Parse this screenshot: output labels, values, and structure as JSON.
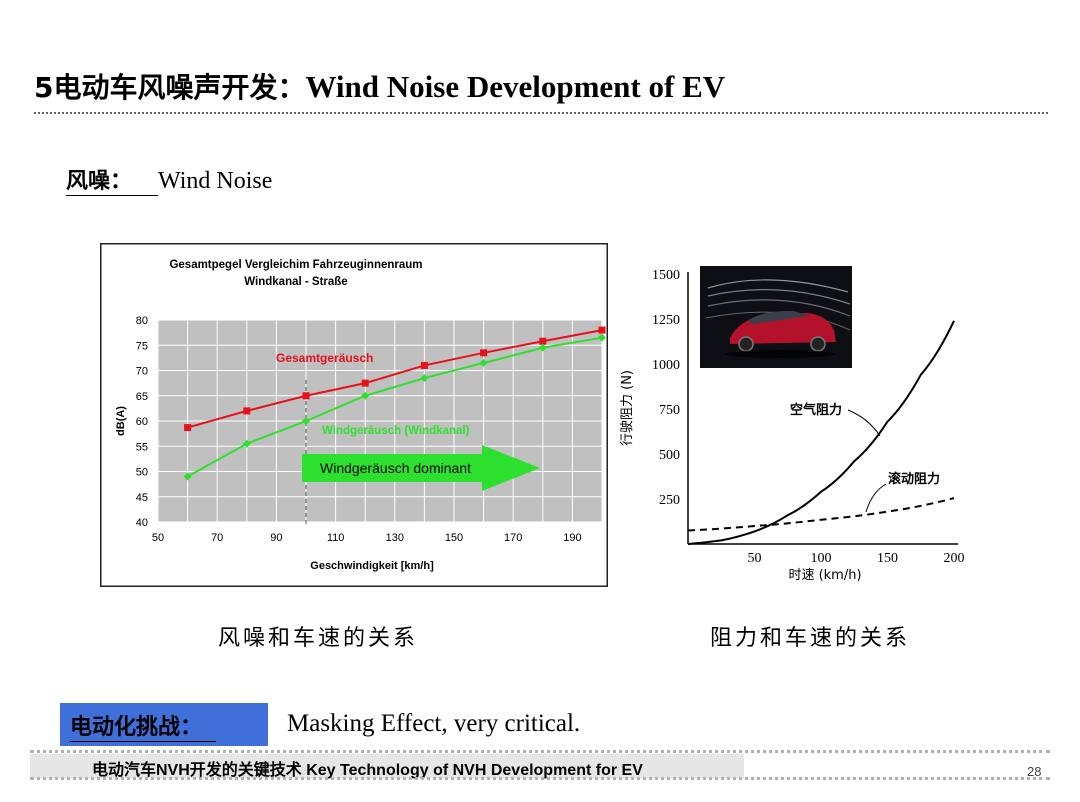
{
  "header": {
    "title_zh": "5电动车风噪声开发：",
    "title_en": "Wind Noise Development of  EV"
  },
  "section": {
    "label": "风噪：",
    "value": "Wind Noise"
  },
  "captions": {
    "left": "风噪和车速的关系",
    "right": "阻力和车速的关系"
  },
  "challenge": {
    "label": "电动化挑战：",
    "text": "Masking Effect,  very critical."
  },
  "footer": {
    "text": "电动汽车NVH开发的关键技术 Key Technology of NVH Development for EV",
    "page_number": "28"
  },
  "colors": {
    "red_series": "#e8101a",
    "green_series": "#2ee02e",
    "plot_bg": "#c0c0c0",
    "challenge_box": "#3f6fd9"
  },
  "chart_data": [
    {
      "type": "line",
      "title": "Gesamtpegel Vergleichim Fahrzeuginnenraum",
      "subtitle": "Windkanal - Straße",
      "xlabel": "Geschwindigkeit [km/h]",
      "ylabel": "dB(A)",
      "xlim": [
        50,
        200
      ],
      "ylim": [
        40,
        80
      ],
      "xticks": [
        50,
        70,
        90,
        110,
        130,
        150,
        170,
        190
      ],
      "yticks": [
        40,
        45,
        50,
        55,
        60,
        65,
        70,
        75,
        80
      ],
      "grid": true,
      "series": [
        {
          "name": "Gesamtgeräusch",
          "color": "#e8101a",
          "x": [
            60,
            80,
            100,
            120,
            140,
            160,
            180,
            200
          ],
          "y": [
            58.7,
            62,
            65,
            67.5,
            71,
            73.5,
            75.8,
            78
          ]
        },
        {
          "name": "Windgeräusch (Windkanal)",
          "color": "#2ee02e",
          "x": [
            60,
            80,
            100,
            120,
            140,
            160,
            180,
            200
          ],
          "y": [
            49,
            55.5,
            60,
            65,
            68.5,
            71.5,
            74.5,
            76.5
          ]
        }
      ],
      "annotations": {
        "arrow_label": "Windgeräusch dominant",
        "dashed_line_x": 100
      }
    },
    {
      "type": "line",
      "xlabel": "时速 (km/h)",
      "ylabel": "行驶阻力 (N)",
      "xlim": [
        0,
        200
      ],
      "ylim": [
        0,
        1500
      ],
      "xticks": [
        50,
        100,
        150,
        200
      ],
      "yticks": [
        250,
        500,
        750,
        1000,
        1250,
        1500
      ],
      "grid": false,
      "series": [
        {
          "name": "空气阻力",
          "style": "solid",
          "x": [
            0,
            25,
            50,
            75,
            100,
            125,
            150,
            175,
            200
          ],
          "y": [
            0,
            20,
            70,
            160,
            290,
            460,
            680,
            940,
            1240
          ]
        },
        {
          "name": "滚动阻力",
          "style": "dashed",
          "x": [
            0,
            50,
            100,
            150,
            200
          ],
          "y": [
            75,
            100,
            135,
            180,
            255
          ]
        }
      ]
    }
  ]
}
